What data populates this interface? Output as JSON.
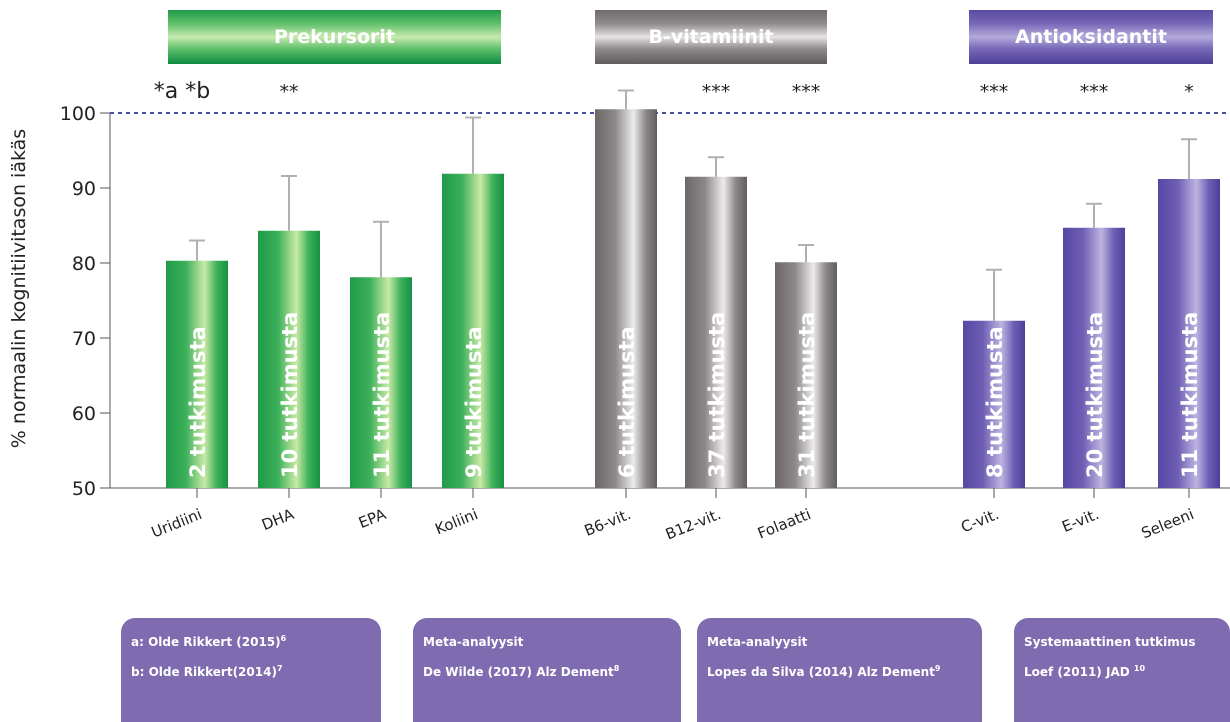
{
  "chart_data": {
    "type": "bar",
    "ylabel": "% normaalin kognitiivitason iäkäs",
    "ylim": [
      50,
      100
    ],
    "yticks": [
      50,
      60,
      70,
      80,
      90,
      100
    ],
    "reference_line": 100,
    "groups": [
      {
        "name": "Prekursorit",
        "color": "green"
      },
      {
        "name": "B-vitamiinit",
        "color": "grey"
      },
      {
        "name": "Antioksidantit",
        "color": "purple"
      }
    ],
    "categories": [
      "Uridiini",
      "DHA",
      "EPA",
      "Koliini",
      "B6-vit.",
      "B12-vit.",
      "Folaatti",
      "C-vit.",
      "E-vit.",
      "Seleeni"
    ],
    "group_index": [
      0,
      0,
      0,
      0,
      1,
      1,
      1,
      2,
      2,
      2
    ],
    "values": [
      80.3,
      84.3,
      78.1,
      91.9,
      100.5,
      91.5,
      80.1,
      72.3,
      84.7,
      91.2
    ],
    "error_upper": [
      83.0,
      91.6,
      85.5,
      99.4,
      103.0,
      94.1,
      82.4,
      79.1,
      87.9,
      96.5
    ],
    "bar_labels": [
      "2 tutkimusta",
      "10 tutkimusta",
      "11 tutkimusta",
      "9 tutkimusta",
      "6 tutkimusta",
      "37 tutkimusta",
      "31 tutkimusta",
      "8 tutkimusta",
      "20 tutkimusta",
      "11 tutkimusta"
    ],
    "significance": [
      "*a *b",
      "**",
      "",
      "",
      "",
      "***",
      "***",
      "***",
      "***",
      "*"
    ],
    "colors": {
      "green": "#2ea84f",
      "grey": "#8a8586",
      "purple": "#6b5aaf",
      "refline": "#4a4f9a"
    }
  },
  "references": [
    {
      "lines": [
        {
          "text": "a: Olde Rikkert (2015)",
          "sup": "6"
        },
        {
          "text": "b: Olde Rikkert(2014)",
          "sup": "7"
        }
      ]
    },
    {
      "lines": [
        {
          "text": "Meta-analyysit",
          "sup": ""
        },
        {
          "text": "De Wilde (2017) Alz Dement",
          "sup": "8"
        }
      ]
    },
    {
      "lines": [
        {
          "text": "Meta-analyysit",
          "sup": ""
        },
        {
          "text": "Lopes da Silva (2014) Alz Dement",
          "sup": "9"
        }
      ]
    },
    {
      "lines": [
        {
          "text": "Systemaattinen tutkimus",
          "sup": ""
        },
        {
          "text": "Loef (2011) JAD ",
          "sup": "10"
        }
      ]
    }
  ]
}
